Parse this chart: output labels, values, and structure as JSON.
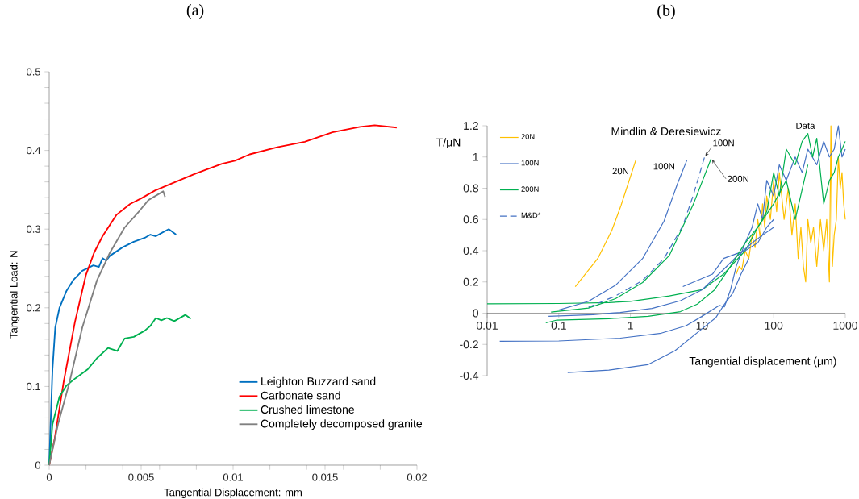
{
  "chart_data": [
    {
      "type": "line",
      "title": "(a)",
      "xlabel": "Tangential Displacement: mm",
      "ylabel": "Tangential Load: N",
      "xlim": [
        0,
        0.02
      ],
      "ylim": [
        0,
        0.5
      ],
      "xticks": [
        0,
        {
          "value": 0.002,
          "label": null
        },
        {
          "value": 0.004,
          "label": null
        },
        0.005,
        {
          "value": 0.006,
          "label": null
        },
        {
          "value": 0.008,
          "label": null
        },
        0.01,
        {
          "value": 0.012,
          "label": null
        },
        {
          "value": 0.014,
          "label": null
        },
        0.015,
        {
          "value": 0.016,
          "label": null
        },
        {
          "value": 0.018,
          "label": null
        },
        0.02
      ],
      "yticks": [
        0,
        {
          "value": 0.02,
          "label": null
        },
        {
          "value": 0.04,
          "label": null
        },
        {
          "value": 0.06,
          "label": null
        },
        {
          "value": 0.08,
          "label": null
        },
        0.1,
        {
          "value": 0.12,
          "label": null
        },
        {
          "value": 0.14,
          "label": null
        },
        {
          "value": 0.16,
          "label": null
        },
        {
          "value": 0.18,
          "label": null
        },
        0.2,
        {
          "value": 0.22,
          "label": null
        },
        {
          "value": 0.24,
          "label": null
        },
        {
          "value": 0.26,
          "label": null
        },
        {
          "value": 0.28,
          "label": null
        },
        0.3,
        {
          "value": 0.32,
          "label": null
        },
        {
          "value": 0.34,
          "label": null
        },
        {
          "value": 0.36,
          "label": null
        },
        {
          "value": 0.38,
          "label": null
        },
        0.4,
        {
          "value": 0.42,
          "label": null
        },
        {
          "value": 0.44,
          "label": null
        },
        {
          "value": 0.46,
          "label": null
        },
        {
          "value": 0.48,
          "label": null
        },
        0.5
      ],
      "legend": "bottom right",
      "series": [
        {
          "name": "Leighton Buzzard sand",
          "color": "#0070c0",
          "x": [
            0,
            0.0001,
            0.00018,
            0.00033,
            0.00056,
            0.00093,
            0.0013,
            0.0018,
            0.0024,
            0.0027,
            0.0029,
            0.0031,
            0.0033,
            0.004,
            0.0046,
            0.0052,
            0.0055,
            0.0058,
            0.0061,
            0.0065,
            0.0069
          ],
          "values": [
            0,
            0.069,
            0.122,
            0.175,
            0.2,
            0.221,
            0.235,
            0.247,
            0.254,
            0.252,
            0.263,
            0.26,
            0.266,
            0.277,
            0.284,
            0.289,
            0.293,
            0.291,
            0.295,
            0.3,
            0.293
          ]
        },
        {
          "name": "Carbonate sand",
          "color": "#ff0000",
          "x": [
            0,
            0.0003,
            0.00078,
            0.0014,
            0.002,
            0.00244,
            0.0029,
            0.00365,
            0.0044,
            0.005,
            0.00575,
            0.00666,
            0.0079,
            0.0094,
            0.0101,
            0.0109,
            0.0124,
            0.0139,
            0.0154,
            0.0169,
            0.0177,
            0.0189
          ],
          "values": [
            0,
            0.034,
            0.105,
            0.182,
            0.242,
            0.27,
            0.291,
            0.318,
            0.332,
            0.339,
            0.349,
            0.358,
            0.37,
            0.383,
            0.387,
            0.395,
            0.404,
            0.411,
            0.423,
            0.43,
            0.432,
            0.429
          ]
        },
        {
          "name": "Crushed limestone",
          "color": "#00b050",
          "x": [
            0,
            0.00018,
            0.00056,
            0.00093,
            0.0014,
            0.0021,
            0.0026,
            0.0032,
            0.0037,
            0.0041,
            0.0046,
            0.0052,
            0.0055,
            0.0058,
            0.0061,
            0.0064,
            0.0068,
            0.0074,
            0.0077
          ],
          "values": [
            0,
            0.052,
            0.087,
            0.101,
            0.11,
            0.122,
            0.136,
            0.149,
            0.145,
            0.161,
            0.163,
            0.171,
            0.177,
            0.187,
            0.184,
            0.187,
            0.183,
            0.191,
            0.186
          ]
        },
        {
          "name": "Completely decomposed granite",
          "color": "#808080",
          "x": [
            0,
            0.00048,
            0.0011,
            0.0018,
            0.0026,
            0.0033,
            0.0041,
            0.0049,
            0.0054,
            0.0062,
            0.0063
          ],
          "values": [
            0,
            0.052,
            0.105,
            0.175,
            0.235,
            0.27,
            0.302,
            0.323,
            0.337,
            0.348,
            0.341
          ]
        }
      ]
    },
    {
      "type": "line",
      "title": "(b)",
      "xlabel": "Tangential displacement (μm)",
      "ylabel": "T/μN",
      "log": "x",
      "xlim": [
        0.01,
        1000
      ],
      "ylim": [
        -0.4,
        1.2
      ],
      "xticks": [
        0.01,
        0.1,
        1,
        10,
        100,
        1000
      ],
      "yticks": [
        -0.4,
        -0.2,
        0,
        0.2,
        0.4,
        0.6,
        0.8,
        1,
        1.2
      ],
      "legend": "top left",
      "annotations": [
        "Mindlin & Deresiewicz",
        "20N",
        "100N",
        "100N",
        "200N",
        "Data"
      ],
      "series": [
        {
          "name": "20N",
          "color": "#ffc000",
          "x": [
            30,
            33,
            36,
            40,
            45,
            50,
            55,
            60,
            65,
            70,
            75,
            80,
            90,
            100,
            110,
            120,
            140,
            160,
            180,
            200,
            220,
            240,
            260,
            280,
            300,
            330,
            360,
            400,
            450,
            500,
            550,
            600,
            630,
            660,
            700,
            750,
            800,
            850,
            900,
            950,
            1000
          ],
          "values": [
            0.25,
            0.3,
            0.28,
            0.4,
            0.35,
            0.5,
            0.42,
            0.6,
            0.48,
            0.7,
            0.55,
            0.75,
            0.6,
            0.85,
            0.65,
            0.9,
            0.6,
            0.8,
            0.5,
            0.7,
            0.35,
            0.55,
            0.3,
            0.2,
            0.6,
            0.45,
            0.55,
            0.3,
            0.6,
            0.4,
            0.6,
            0.2,
            1.2,
            0.3,
            0.5,
            0.6,
            1.0,
            0.8,
            0.9,
            0.7,
            0.6
          ]
        },
        {
          "name": "100N",
          "color": "#4472c4",
          "x": [
            0.015,
            0.1,
            0.72,
            2.7,
            6,
            10,
            17.5,
            20.5,
            25,
            30,
            40,
            50,
            60,
            70,
            80,
            100,
            120,
            150,
            200,
            250,
            300,
            400,
            500,
            600,
            700,
            800,
            900,
            1000
          ],
          "values": [
            -0.18,
            -0.178,
            -0.16,
            -0.128,
            -0.08,
            -0.02,
            0.05,
            0.04,
            0.15,
            0.3,
            0.45,
            0.55,
            0.7,
            0.6,
            0.85,
            0.75,
            0.95,
            0.85,
            1.0,
            0.9,
            1.05,
            0.95,
            1.1,
            1.0,
            1.05,
            1.2,
            1.0,
            1.05
          ]
        },
        {
          "name": "200N",
          "color": "#00b050",
          "x": [
            0.01,
            0.1,
            0.5,
            1,
            3.5,
            10,
            20,
            40,
            60,
            80,
            100,
            120,
            150,
            200,
            250,
            300,
            350,
            400,
            500,
            600,
            700,
            800,
            900,
            1000
          ],
          "values": [
            0.06,
            0.062,
            0.068,
            0.075,
            0.11,
            0.15,
            0.25,
            0.4,
            0.55,
            0.65,
            0.9,
            0.75,
            1.05,
            0.95,
            1.1,
            1.15,
            1.0,
            1.12,
            0.7,
            0.85,
            0.9,
            1.0,
            1.05,
            1.1
          ]
        },
        {
          "name": "M&D*",
          "color": "#4472c4",
          "line_style": "dashed",
          "x": [
            0.26,
            0.62,
            1.48,
            2.95,
            5.4,
            7.6,
            10.8
          ],
          "values": [
            0.038,
            0.11,
            0.21,
            0.35,
            0.56,
            0.76,
            0.997
          ]
        },
        {
          "color": "#ffc000",
          "x": [
            0.17,
            0.35,
            0.55,
            0.74,
            1.19
          ],
          "values": [
            0.17,
            0.35,
            0.53,
            0.69,
            0.98
          ]
        },
        {
          "color": "#4472c4",
          "x": [
            0.1,
            0.26,
            0.62,
            1.48,
            2.95,
            4.55,
            6.15
          ],
          "values": [
            0.02,
            0.076,
            0.179,
            0.35,
            0.59,
            0.83,
            0.98
          ]
        },
        {
          "color": "#00b050",
          "x": [
            0.078,
            0.26,
            0.62,
            1.48,
            3.5,
            7.6,
            13.4
          ],
          "values": [
            0.007,
            0.033,
            0.093,
            0.196,
            0.37,
            0.7,
            0.99
          ]
        },
        {
          "color": "#4472c4",
          "x": [
            0.133,
            0.5,
            1.74,
            4.2,
            10,
            15.5,
            20.6,
            27,
            35,
            45
          ],
          "values": [
            -0.38,
            -0.365,
            -0.33,
            -0.24,
            -0.1,
            -0.03,
            0.058,
            0.13,
            0.25,
            0.35
          ]
        },
        {
          "color": "#4472c4",
          "x": [
            0.072,
            0.3,
            0.72,
            2,
            5,
            10,
            20,
            30,
            50,
            70,
            100
          ],
          "values": [
            -0.02,
            -0.01,
            0.005,
            0.03,
            0.08,
            0.15,
            0.28,
            0.36,
            0.45,
            0.5,
            0.55
          ]
        },
        {
          "color": "#4472c4",
          "x": [
            5.4,
            14,
            20,
            30,
            40,
            60,
            80,
            100
          ],
          "values": [
            0.17,
            0.25,
            0.35,
            0.38,
            0.4,
            0.45,
            0.55,
            0.6
          ]
        },
        {
          "color": "#00b050",
          "x": [
            0.066,
            0.094,
            0.5,
            1.77,
            5,
            8.6,
            15,
            25,
            40,
            60,
            100,
            150,
            200,
            300
          ],
          "values": [
            -0.062,
            -0.044,
            -0.035,
            -0.02,
            0.01,
            0.058,
            0.15,
            0.3,
            0.45,
            0.55,
            0.7,
            0.85,
            0.6,
            0.95
          ]
        }
      ]
    }
  ]
}
